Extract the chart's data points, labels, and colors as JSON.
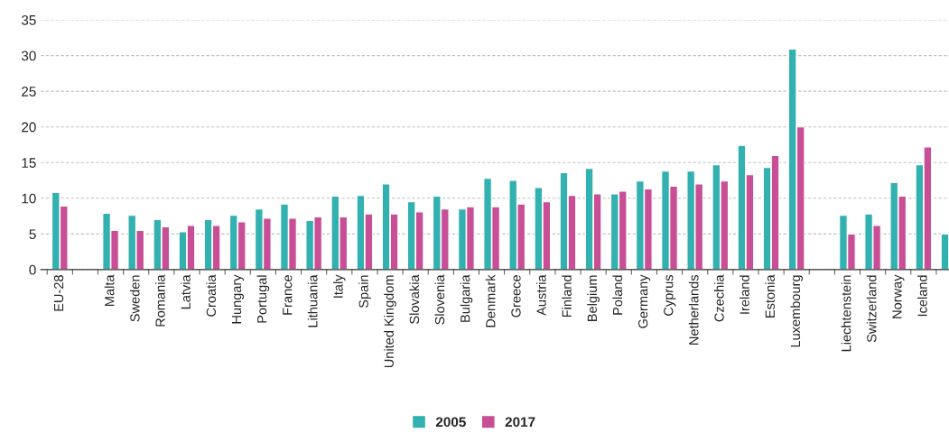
{
  "chart_data": {
    "type": "bar",
    "categories": [
      "EU-28",
      null,
      "Malta",
      "Sweden",
      "Romania",
      "Latvia",
      "Croatia",
      "Hungary",
      "Portugal",
      "France",
      "Lithuania",
      "Italy",
      "Spain",
      "United Kingdom",
      "Slovakia",
      "Slovenia",
      "Bulgaria",
      "Denmark",
      "Greece",
      "Austria",
      "Finland",
      "Belgium",
      "Poland",
      "Germany",
      "Cyprus",
      "Netherlands",
      "Czechia",
      "Ireland",
      "Estonia",
      "Luxembourg",
      null,
      "Liechtenstein",
      "Switzerland",
      "Norway",
      "Iceland",
      null
    ],
    "series": [
      {
        "name": "2005",
        "color": "#33b0b0",
        "values": [
          10.8,
          null,
          7.9,
          7.6,
          7.0,
          5.3,
          7.0,
          7.6,
          8.5,
          9.2,
          6.9,
          10.3,
          10.4,
          12.0,
          9.5,
          10.3,
          8.5,
          12.8,
          12.5,
          11.5,
          13.6,
          14.2,
          10.6,
          12.4,
          13.8,
          13.8,
          14.7,
          17.4,
          14.3,
          30.9,
          null,
          7.6,
          7.8,
          12.2,
          14.7,
          5.0
        ]
      },
      {
        "name": "2017",
        "color": "#c84f96",
        "values": [
          8.9,
          null,
          5.5,
          5.5,
          6.0,
          6.2,
          6.2,
          6.7,
          7.2,
          7.2,
          7.4,
          7.4,
          7.8,
          7.8,
          8.1,
          8.5,
          8.8,
          8.8,
          9.2,
          9.5,
          10.4,
          10.6,
          11.0,
          11.3,
          11.7,
          12.0,
          12.4,
          13.3,
          16.0,
          20.0,
          null,
          5.0,
          6.2,
          10.3,
          17.2,
          null
        ]
      }
    ],
    "ylim": [
      0,
      35
    ],
    "yticks": [
      0,
      5,
      10,
      15,
      20,
      25,
      30,
      35
    ],
    "grid": "y",
    "legend": "bottom"
  }
}
